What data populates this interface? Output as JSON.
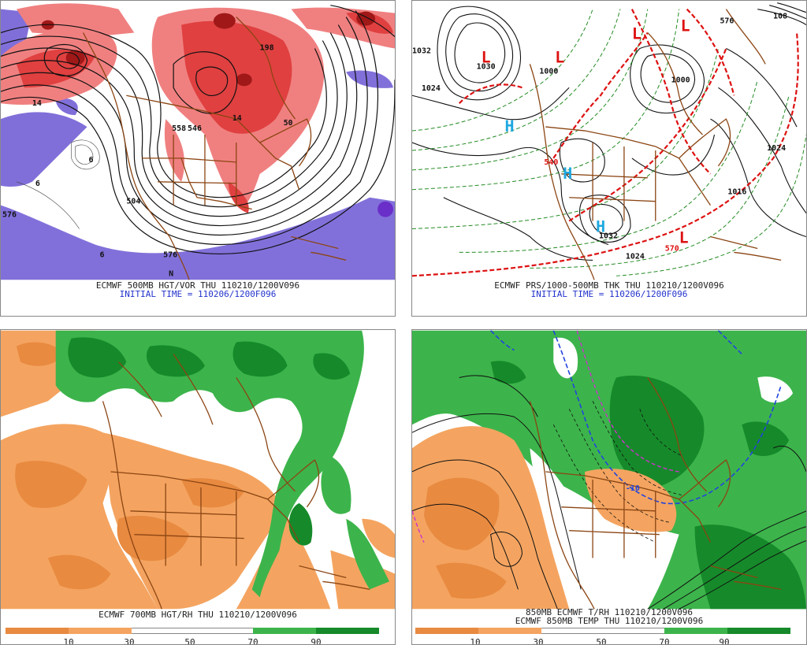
{
  "colors": {
    "vort_red_light": "#f08080",
    "vort_red_mid": "#e04040",
    "vort_red_dark": "#a01818",
    "vort_purple": "#7b68d8",
    "vort_purple_dark": "#6a2fc8",
    "dry_orange": "#f4a460",
    "dry_orange_dark": "#e88a40",
    "moist_green": "#3cb44b",
    "moist_green_dark": "#168a2a",
    "coast_brown": "#8b4513",
    "contour_black": "#111111",
    "thickness_red": "#dd1111",
    "thickness_green": "#228b22",
    "high_cyan": "#1ea8e0",
    "isotherm_blue": "#2244dd",
    "isotherm_magenta": "#cc33cc"
  },
  "panels": [
    {
      "caption_line1": "ECMWF 500MB HGT/VOR THU 110210/1200V096",
      "caption_line2": "INITIAL TIME = 110206/1200F096",
      "labels": [
        "576",
        "504",
        "558",
        "546",
        "576",
        "6",
        "6",
        "6",
        "N",
        "50",
        "14",
        "14",
        "198"
      ]
    },
    {
      "caption_line1": "ECMWF PRS/1000-500MB THK THU 110210/1200V096",
      "caption_line2": "INITIAL TIME = 110206/1200F096",
      "labels": [
        "1032",
        "1024",
        "1030",
        "1000",
        "1000",
        "1024",
        "1016",
        "1032",
        "1024",
        "540",
        "570",
        "576",
        "108",
        "L",
        "L",
        "L",
        "L",
        "L",
        "H",
        "H",
        "H"
      ]
    },
    {
      "caption_line1": "ECMWF 700MB HGT/RH THU 110210/1200V096",
      "colorbar_ticks": [
        "10",
        "30",
        "50",
        "70",
        "90"
      ]
    },
    {
      "caption_line1": "850MB ECMWF T/RH 110210/1200V096",
      "caption_line2": "ECMWF 850MB TEMP THU 110210/1200V096",
      "colorbar_ticks": [
        "10",
        "30",
        "50",
        "70",
        "90"
      ],
      "labels": [
        "-10"
      ]
    }
  ]
}
